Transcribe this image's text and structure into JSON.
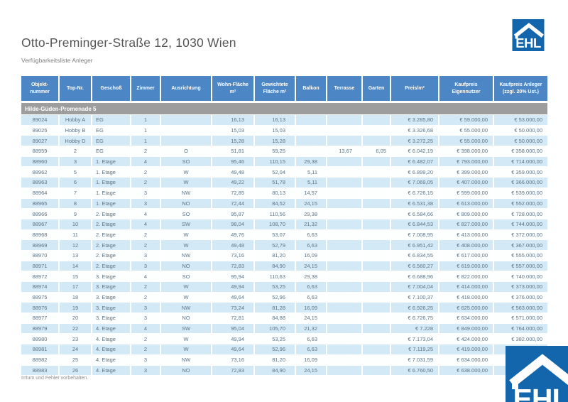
{
  "page": {
    "title": "Otto-Preminger-Straße 12, 1030 Wien",
    "subtitle": "Verfügbarkeitsliste Anleger",
    "footer": "Irrtum und Fehler vorbehalten."
  },
  "logo": {
    "text": "EHL",
    "blue": "#1366ac"
  },
  "colors": {
    "header_bg": "#4c86c4",
    "group_bg": "#9d9d9d",
    "row_stripe": "#d3e9f6",
    "cell_text": "#5d7486"
  },
  "table": {
    "columns": [
      {
        "key": "objektnummer",
        "label": "Objekt-nummer"
      },
      {
        "key": "top_nr",
        "label": "Top-Nr."
      },
      {
        "key": "geschoss",
        "label": "Geschoß"
      },
      {
        "key": "zimmer",
        "label": "Zimmer"
      },
      {
        "key": "ausrichtung",
        "label": "Ausrichtung"
      },
      {
        "key": "wohnflaeche",
        "label": "Wohn-Fläche m²"
      },
      {
        "key": "gewichtete_flaeche",
        "label": "Gewichtete Fläche m²"
      },
      {
        "key": "balkon",
        "label": "Balkon"
      },
      {
        "key": "terrasse",
        "label": "Terrasse"
      },
      {
        "key": "garten",
        "label": "Garten"
      },
      {
        "key": "preis_m2",
        "label": "Preis/m²"
      },
      {
        "key": "kaufpreis_eigennutzer",
        "label": "Kaufpreis Eigennutzer"
      },
      {
        "key": "kaufpreis_anleger",
        "label": "Kaufpreis Anleger (zzgl. 20% Ust.)"
      }
    ],
    "group_header": "Hilde-Güden-Promenade 5",
    "rows": [
      [
        "89024",
        "Hobby A",
        "EG",
        "1",
        "",
        "16,13",
        "16,13",
        "",
        "",
        "",
        "€ 3.285,80",
        "€ 59.000,00",
        "€ 53.000,00"
      ],
      [
        "89025",
        "Hobby B",
        "EG",
        "1",
        "",
        "15,03",
        "15,03",
        "",
        "",
        "",
        "€ 3.326,68",
        "€ 55.000,00",
        "€ 50.000,00"
      ],
      [
        "89027",
        "Hobby D",
        "EG",
        "1",
        "",
        "15,28",
        "15,28",
        "",
        "",
        "",
        "€ 3.272,25",
        "€ 55.000,00",
        "€ 50.000,00"
      ],
      [
        "88959",
        "2",
        "EG",
        "2",
        "O",
        "51,81",
        "59,25",
        "",
        "13,67",
        "6,05",
        "€ 6.042,19",
        "€ 398.000,00",
        "€ 358.000,00"
      ],
      [
        "88960",
        "3",
        "1. Etage",
        "4",
        "SO",
        "95,46",
        "110,15",
        "29,38",
        "",
        "",
        "€ 6.482,07",
        "€ 793.000,00",
        "€ 714.000,00"
      ],
      [
        "88962",
        "5",
        "1. Etage",
        "2",
        "W",
        "49,48",
        "52,04",
        "5,11",
        "",
        "",
        "€ 6.899,20",
        "€ 399.000,00",
        "€ 359.000,00"
      ],
      [
        "88963",
        "6",
        "1. Etage",
        "2",
        "W",
        "49,22",
        "51,78",
        "5,11",
        "",
        "",
        "€ 7.069,05",
        "€ 407.000,00",
        "€ 366.000,00"
      ],
      [
        "88964",
        "7",
        "1. Etage",
        "3",
        "NW",
        "72,85",
        "80,13",
        "14,57",
        "",
        "",
        "€ 6.726,15",
        "€ 599.000,00",
        "€ 539.000,00"
      ],
      [
        "88965",
        "8",
        "1. Etage",
        "3",
        "NO",
        "72,44",
        "84,52",
        "24,15",
        "",
        "",
        "€ 6.531,38",
        "€ 613.000,00",
        "€ 552.000,00"
      ],
      [
        "88966",
        "9",
        "2. Etage",
        "4",
        "SO",
        "95,87",
        "110,56",
        "29,38",
        "",
        "",
        "€ 6.584,66",
        "€ 809.000,00",
        "€ 728.000,00"
      ],
      [
        "88967",
        "10",
        "2. Etage",
        "4",
        "SW",
        "98,04",
        "108,70",
        "21,32",
        "",
        "",
        "€ 6.844,53",
        "€ 827.000,00",
        "€ 744.000,00"
      ],
      [
        "88968",
        "11",
        "2. Etage",
        "2",
        "W",
        "49,76",
        "53,07",
        "6,63",
        "",
        "",
        "€ 7.008,95",
        "€ 413.000,00",
        "€ 372.000,00"
      ],
      [
        "88969",
        "12",
        "2. Etage",
        "2",
        "W",
        "49,48",
        "52,79",
        "6,63",
        "",
        "",
        "€ 6.951,42",
        "€ 408.000,00",
        "€ 367.000,00"
      ],
      [
        "88970",
        "13",
        "2. Etage",
        "3",
        "NW",
        "73,16",
        "81,20",
        "16,09",
        "",
        "",
        "€ 6.834,55",
        "€ 617.000,00",
        "€ 555.000,00"
      ],
      [
        "88971",
        "14",
        "2. Etage",
        "3",
        "NO",
        "72,83",
        "84,90",
        "24,15",
        "",
        "",
        "€ 6.560,27",
        "€ 619.000,00",
        "€ 557.000,00"
      ],
      [
        "88972",
        "15",
        "3. Etage",
        "4",
        "SO",
        "95,94",
        "110,63",
        "29,38",
        "",
        "",
        "€ 6.688,96",
        "€ 822.000,00",
        "€ 740.000,00"
      ],
      [
        "88974",
        "17",
        "3. Etage",
        "2",
        "W",
        "49,94",
        "53,25",
        "6,63",
        "",
        "",
        "€ 7.004,04",
        "€ 414.000,00",
        "€ 373.000,00"
      ],
      [
        "88975",
        "18",
        "3. Etage",
        "2",
        "W",
        "49,64",
        "52,96",
        "6,63",
        "",
        "",
        "€ 7.100,37",
        "€ 418.000,00",
        "€ 376.000,00"
      ],
      [
        "88976",
        "19",
        "3. Etage",
        "3",
        "NW",
        "73,24",
        "81,28",
        "16,09",
        "",
        "",
        "€ 6.926,25",
        "€ 625.000,00",
        "€ 563.000,00"
      ],
      [
        "88977",
        "20",
        "3. Etage",
        "3",
        "NO",
        "72,81",
        "84,88",
        "24,15",
        "",
        "",
        "€ 6.726,75",
        "€ 634.000,00",
        "€ 571.000,00"
      ],
      [
        "88979",
        "22",
        "4. Etage",
        "4",
        "SW",
        "95,04",
        "105,70",
        "21,32",
        "",
        "",
        "€ 7.228",
        "€ 849.000,00",
        "€ 764.000,00"
      ],
      [
        "88980",
        "23",
        "4. Etage",
        "2",
        "W",
        "49,94",
        "53,25",
        "6,63",
        "",
        "",
        "€ 7.173,04",
        "€ 424.000,00",
        "€ 382.000,00"
      ],
      [
        "88981",
        "24",
        "4. Etage",
        "2",
        "W",
        "49,64",
        "52,96",
        "6,63",
        "",
        "",
        "€ 7.119,25",
        "€ 419.000,00",
        "€"
      ],
      [
        "88982",
        "25",
        "4. Etage",
        "3",
        "NW",
        "73,16",
        "81,20",
        "16,09",
        "",
        "",
        "€ 7.031,59",
        "€ 634.000,00",
        "€"
      ],
      [
        "88983",
        "26",
        "4. Etage",
        "3",
        "NO",
        "72,83",
        "84,90",
        "24,15",
        "",
        "",
        "€ 6.760,50",
        "€ 638.000,00",
        "€"
      ]
    ]
  }
}
